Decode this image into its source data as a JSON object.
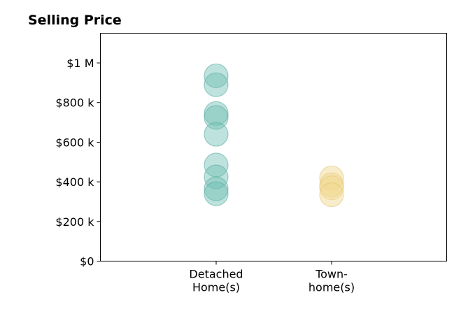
{
  "chart_data": {
    "type": "scatter",
    "title": "Selling Price",
    "xlabel": "",
    "ylabel": "",
    "ylim": [
      0,
      1150000
    ],
    "grid": false,
    "categories": [
      [
        "Detached",
        "Home(s)"
      ],
      [
        "Town-",
        "home(s)"
      ]
    ],
    "yticks": [
      {
        "value": 0,
        "label": "$0"
      },
      {
        "value": 200000,
        "label": "$200 k"
      },
      {
        "value": 400000,
        "label": "$400 k"
      },
      {
        "value": 600000,
        "label": "$600 k"
      },
      {
        "value": 800000,
        "label": "$800 k"
      },
      {
        "value": 1000000,
        "label": "$1 M"
      }
    ],
    "series": [
      {
        "category_index": 0,
        "color": "#6fbfb4",
        "stroke": "#5aa99f",
        "values": [
          935000,
          890000,
          745000,
          725000,
          640000,
          485000,
          425000,
          365000,
          340000
        ]
      },
      {
        "category_index": 1,
        "color": "#f0d68c",
        "stroke": "#e3c574",
        "values": [
          420000,
          385000,
          370000,
          335000
        ]
      }
    ]
  }
}
